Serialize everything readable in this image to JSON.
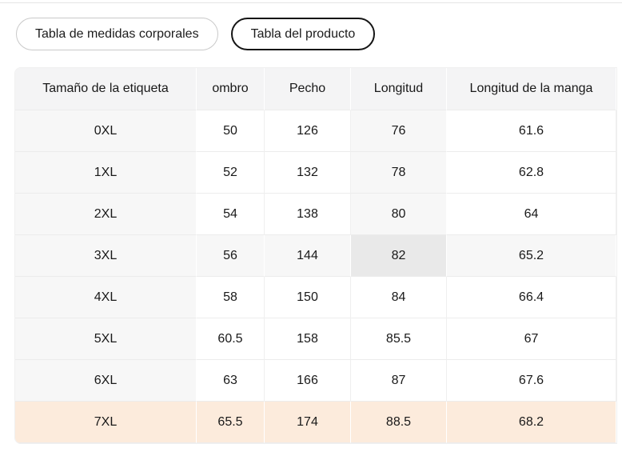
{
  "tabs": {
    "body_chart_label": "Tabla de medidas corporales",
    "product_chart_label": "Tabla del producto"
  },
  "table": {
    "columns": [
      "Tamaño de la etiqueta",
      "ombro",
      "Pecho",
      "Longitud",
      "Longitud de la manga"
    ],
    "rows": [
      {
        "size": "0XL",
        "values": [
          "50",
          "126",
          "76",
          "61.6"
        ]
      },
      {
        "size": "1XL",
        "values": [
          "52",
          "132",
          "78",
          "62.8"
        ]
      },
      {
        "size": "2XL",
        "values": [
          "54",
          "138",
          "80",
          "64"
        ]
      },
      {
        "size": "3XL",
        "values": [
          "56",
          "144",
          "82",
          "65.2"
        ]
      },
      {
        "size": "4XL",
        "values": [
          "58",
          "150",
          "84",
          "66.4"
        ]
      },
      {
        "size": "5XL",
        "values": [
          "60.5",
          "158",
          "85.5",
          "67"
        ]
      },
      {
        "size": "6XL",
        "values": [
          "63",
          "166",
          "87",
          "67.6"
        ]
      },
      {
        "size": "7XL",
        "values": [
          "65.5",
          "174",
          "88.5",
          "68.2"
        ]
      }
    ],
    "selected_row_index": 7,
    "hover": {
      "row_index": 3,
      "col_index": 3
    },
    "colors": {
      "header_bg": "#f4f4f5",
      "label_col_bg": "#f7f7f7",
      "hover_bg": "#f7f7f7",
      "hover_intersection_bg": "#e9e9e9",
      "selected_row_bg": "#fcebdc",
      "row_border": "#ececec"
    }
  }
}
